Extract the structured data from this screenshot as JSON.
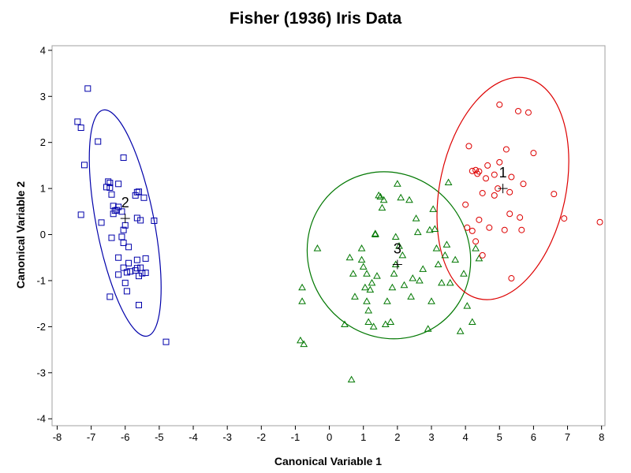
{
  "chart_data": {
    "type": "scatter",
    "title": "Fisher (1936) Iris Data",
    "xlabel": "Canonical Variable 1",
    "ylabel": "Canonical Variable 2",
    "xlim": [
      -8.15,
      8.1
    ],
    "ylim": [
      -4.15,
      4.1
    ],
    "xticks": [
      -8,
      -7,
      -6,
      -5,
      -4,
      -3,
      -2,
      -1,
      0,
      1,
      2,
      3,
      4,
      5,
      6,
      7,
      8
    ],
    "yticks": [
      -4,
      -3,
      -2,
      -1,
      0,
      1,
      2,
      3,
      4
    ],
    "grid": false,
    "legend": "none",
    "series": [
      {
        "label": "2",
        "marker": "square",
        "color": "#0000aa",
        "centroid": [
          -6.0,
          0.35
        ],
        "ellipse": {
          "cx": -6.0,
          "cy": 0.25,
          "rx": 0.85,
          "ry": 2.5,
          "rotation": -11
        },
        "points": [
          [
            -7.1,
            3.17
          ],
          [
            -7.4,
            2.45
          ],
          [
            -7.3,
            2.32
          ],
          [
            -6.8,
            2.02
          ],
          [
            -6.05,
            1.67
          ],
          [
            -7.2,
            1.51
          ],
          [
            -6.5,
            1.15
          ],
          [
            -6.45,
            1.12
          ],
          [
            -6.2,
            1.1
          ],
          [
            -6.55,
            1.03
          ],
          [
            -6.45,
            1.02
          ],
          [
            -5.6,
            0.93
          ],
          [
            -5.65,
            0.92
          ],
          [
            -6.4,
            0.87
          ],
          [
            -5.7,
            0.85
          ],
          [
            -5.45,
            0.8
          ],
          [
            -6.35,
            0.62
          ],
          [
            -6.2,
            0.6
          ],
          [
            -6.25,
            0.53
          ],
          [
            -6.3,
            0.52
          ],
          [
            -6.1,
            0.5
          ],
          [
            -6.35,
            0.45
          ],
          [
            -7.3,
            0.43
          ],
          [
            -5.65,
            0.36
          ],
          [
            -5.55,
            0.31
          ],
          [
            -5.15,
            0.3
          ],
          [
            -6.7,
            0.26
          ],
          [
            -6.0,
            0.2
          ],
          [
            -6.05,
            0.1
          ],
          [
            -6.4,
            -0.07
          ],
          [
            -6.1,
            -0.05
          ],
          [
            -6.05,
            -0.18
          ],
          [
            -5.9,
            -0.27
          ],
          [
            -5.4,
            -0.52
          ],
          [
            -6.2,
            -0.5
          ],
          [
            -5.65,
            -0.55
          ],
          [
            -5.9,
            -0.62
          ],
          [
            -6.05,
            -0.72
          ],
          [
            -5.65,
            -0.73
          ],
          [
            -5.7,
            -0.78
          ],
          [
            -5.55,
            -0.72
          ],
          [
            -5.85,
            -0.8
          ],
          [
            -5.95,
            -0.82
          ],
          [
            -5.5,
            -0.84
          ],
          [
            -5.4,
            -0.83
          ],
          [
            -6.2,
            -0.87
          ],
          [
            -5.6,
            -0.9
          ],
          [
            -6.0,
            -1.05
          ],
          [
            -5.95,
            -1.23
          ],
          [
            -6.45,
            -1.35
          ],
          [
            -5.6,
            -1.53
          ],
          [
            -4.8,
            -2.33
          ]
        ]
      },
      {
        "label": "3",
        "marker": "triangle",
        "color": "#007700",
        "centroid": [
          2.0,
          -0.65
        ],
        "ellipse": {
          "cx": 1.75,
          "cy": -0.45,
          "rx": 2.35,
          "ry": 1.85,
          "rotation": -35
        },
        "points": [
          [
            -0.8,
            -1.45
          ],
          [
            -0.85,
            -2.3
          ],
          [
            -0.75,
            -2.38
          ],
          [
            -0.35,
            -0.3
          ],
          [
            -0.8,
            -1.15
          ],
          [
            0.45,
            -1.95
          ],
          [
            0.65,
            -3.15
          ],
          [
            0.6,
            -0.5
          ],
          [
            0.7,
            -0.85
          ],
          [
            0.75,
            -1.35
          ],
          [
            0.95,
            -0.55
          ],
          [
            0.95,
            -0.3
          ],
          [
            1.0,
            -0.7
          ],
          [
            1.05,
            -1.15
          ],
          [
            1.1,
            -0.85
          ],
          [
            1.1,
            -1.45
          ],
          [
            1.15,
            -1.65
          ],
          [
            1.2,
            -1.2
          ],
          [
            1.15,
            -1.9
          ],
          [
            1.25,
            -1.05
          ],
          [
            1.3,
            -2.0
          ],
          [
            1.35,
            0.0
          ],
          [
            1.35,
            0.02
          ],
          [
            1.4,
            -0.9
          ],
          [
            1.45,
            0.85
          ],
          [
            1.5,
            0.82
          ],
          [
            1.55,
            0.58
          ],
          [
            1.6,
            0.75
          ],
          [
            1.65,
            -1.95
          ],
          [
            1.7,
            -1.45
          ],
          [
            1.8,
            -1.9
          ],
          [
            1.85,
            -1.15
          ],
          [
            1.9,
            -0.85
          ],
          [
            1.95,
            -0.05
          ],
          [
            1.95,
            -0.65
          ],
          [
            2.0,
            1.1
          ],
          [
            2.05,
            -0.25
          ],
          [
            2.1,
            0.8
          ],
          [
            2.15,
            -0.45
          ],
          [
            2.2,
            -1.1
          ],
          [
            2.35,
            0.75
          ],
          [
            2.4,
            -1.35
          ],
          [
            2.45,
            -0.95
          ],
          [
            2.55,
            0.35
          ],
          [
            2.6,
            0.05
          ],
          [
            2.65,
            -1.0
          ],
          [
            2.75,
            -0.75
          ],
          [
            2.9,
            -2.05
          ],
          [
            2.95,
            0.1
          ],
          [
            3.0,
            -1.45
          ],
          [
            3.05,
            0.55
          ],
          [
            3.1,
            0.12
          ],
          [
            3.15,
            -0.3
          ],
          [
            3.2,
            -0.65
          ],
          [
            3.3,
            -1.05
          ],
          [
            3.4,
            -0.45
          ],
          [
            3.45,
            -0.22
          ],
          [
            3.5,
            1.13
          ],
          [
            3.55,
            -1.05
          ],
          [
            3.7,
            -0.55
          ],
          [
            3.85,
            -2.1
          ],
          [
            3.95,
            -0.85
          ],
          [
            4.05,
            -1.55
          ],
          [
            4.2,
            -1.9
          ],
          [
            4.3,
            -0.3
          ],
          [
            4.4,
            -0.52
          ]
        ]
      },
      {
        "label": "1",
        "marker": "circle",
        "color": "#dd0000",
        "centroid": [
          5.1,
          1.0
        ],
        "ellipse": {
          "cx": 5.1,
          "cy": 1.0,
          "rx": 1.85,
          "ry": 2.45,
          "rotation": 12
        },
        "points": [
          [
            5.0,
            2.82
          ],
          [
            5.55,
            2.68
          ],
          [
            5.85,
            2.65
          ],
          [
            6.0,
            1.77
          ],
          [
            5.2,
            1.85
          ],
          [
            4.1,
            1.92
          ],
          [
            4.3,
            1.4
          ],
          [
            4.4,
            1.37
          ],
          [
            4.65,
            1.5
          ],
          [
            5.0,
            1.57
          ],
          [
            4.85,
            1.3
          ],
          [
            4.2,
            1.38
          ],
          [
            4.35,
            1.32
          ],
          [
            4.6,
            1.22
          ],
          [
            5.35,
            1.25
          ],
          [
            5.7,
            1.1
          ],
          [
            4.95,
            1.0
          ],
          [
            4.5,
            0.9
          ],
          [
            4.85,
            0.85
          ],
          [
            5.3,
            0.92
          ],
          [
            4.0,
            0.65
          ],
          [
            6.6,
            0.88
          ],
          [
            5.3,
            0.45
          ],
          [
            4.4,
            0.32
          ],
          [
            5.6,
            0.37
          ],
          [
            6.9,
            0.35
          ],
          [
            4.7,
            0.15
          ],
          [
            4.05,
            0.15
          ],
          [
            4.2,
            0.08
          ],
          [
            5.15,
            0.1
          ],
          [
            5.65,
            0.1
          ],
          [
            7.95,
            0.27
          ],
          [
            4.3,
            -0.15
          ],
          [
            4.5,
            -0.45
          ],
          [
            5.35,
            -0.95
          ]
        ]
      }
    ]
  }
}
